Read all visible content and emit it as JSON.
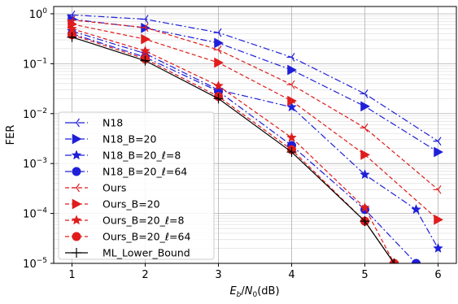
{
  "chart_data": {
    "type": "line",
    "xlabel": "E_b/N_0(dB)",
    "ylabel": "FER",
    "xlim": [
      0.75,
      6.25
    ],
    "ylim": [
      1e-05,
      1.4
    ],
    "yscale": "log",
    "xticks": [
      1,
      2,
      3,
      4,
      5,
      6
    ],
    "yticks": [
      {
        "value": 1e-05,
        "base": "10",
        "exp": "−5"
      },
      {
        "value": 0.0001,
        "base": "10",
        "exp": "−4"
      },
      {
        "value": 0.001,
        "base": "10",
        "exp": "−3"
      },
      {
        "value": 0.01,
        "base": "10",
        "exp": "−2"
      },
      {
        "value": 0.1,
        "base": "10",
        "exp": "−1"
      },
      {
        "value": 1,
        "base": "10",
        "exp": "0"
      }
    ],
    "grid": "major and minor",
    "legend_position": "lower-left",
    "series": [
      {
        "name": "N18",
        "color": "#1f1fd9",
        "dash": "8,3,2,3",
        "marker": "tri_left",
        "x": [
          1,
          2,
          3,
          4,
          5,
          6
        ],
        "y": [
          0.95,
          0.78,
          0.42,
          0.135,
          0.025,
          0.0028
        ]
      },
      {
        "name": "N18_B=20",
        "color": "#1f1fd9",
        "dash": "8,3,2,3",
        "marker": "triangle_right",
        "x": [
          1,
          2,
          3,
          4,
          5,
          6
        ],
        "y": [
          0.78,
          0.52,
          0.26,
          0.075,
          0.014,
          0.0017
        ]
      },
      {
        "name": "N18_B=20_ℓ=8",
        "color": "#1f1fd9",
        "dash": "8,3,2,3",
        "marker": "star",
        "x": [
          1,
          2,
          3,
          4,
          5,
          5.7,
          6
        ],
        "y": [
          0.45,
          0.16,
          0.03,
          0.0135,
          0.0006,
          0.00012,
          2e-05
        ]
      },
      {
        "name": "N18_B=20_ℓ=64",
        "color": "#1f1fd9",
        "dash": "8,3,2,3",
        "marker": "circle",
        "x": [
          1,
          2,
          3,
          4,
          5,
          5.7
        ],
        "y": [
          0.4,
          0.135,
          0.028,
          0.0023,
          0.00012,
          1e-05
        ]
      },
      {
        "name": "Ours",
        "color": "#e01c1c",
        "dash": "5,3",
        "marker": "tri_left",
        "x": [
          1,
          2,
          3,
          4,
          5,
          6
        ],
        "y": [
          0.75,
          0.53,
          0.19,
          0.038,
          0.0052,
          0.0003
        ]
      },
      {
        "name": "Ours_B=20",
        "color": "#e01c1c",
        "dash": "5,3",
        "marker": "triangle_right",
        "x": [
          1,
          2,
          3,
          4,
          5,
          6
        ],
        "y": [
          0.62,
          0.31,
          0.105,
          0.018,
          0.0015,
          7.5e-05
        ]
      },
      {
        "name": "Ours_B=20_ℓ=8",
        "color": "#e01c1c",
        "dash": "5,3",
        "marker": "star",
        "x": [
          1,
          2,
          3,
          4,
          5,
          5.4
        ],
        "y": [
          0.5,
          0.18,
          0.036,
          0.0033,
          0.00013,
          1e-05
        ]
      },
      {
        "name": "Ours_B=20_ℓ=64",
        "color": "#e01c1c",
        "dash": "5,3",
        "marker": "circle",
        "x": [
          1,
          2,
          3,
          4,
          5,
          5.4
        ],
        "y": [
          0.38,
          0.125,
          0.022,
          0.0019,
          7e-05,
          1e-05
        ]
      },
      {
        "name": "ML_Lower_Bound",
        "color": "#000000",
        "dash": "",
        "marker": "plus",
        "x": [
          1,
          2,
          3,
          4,
          5,
          5.4
        ],
        "y": [
          0.34,
          0.115,
          0.02,
          0.0017,
          7e-05,
          1e-05
        ]
      }
    ]
  }
}
